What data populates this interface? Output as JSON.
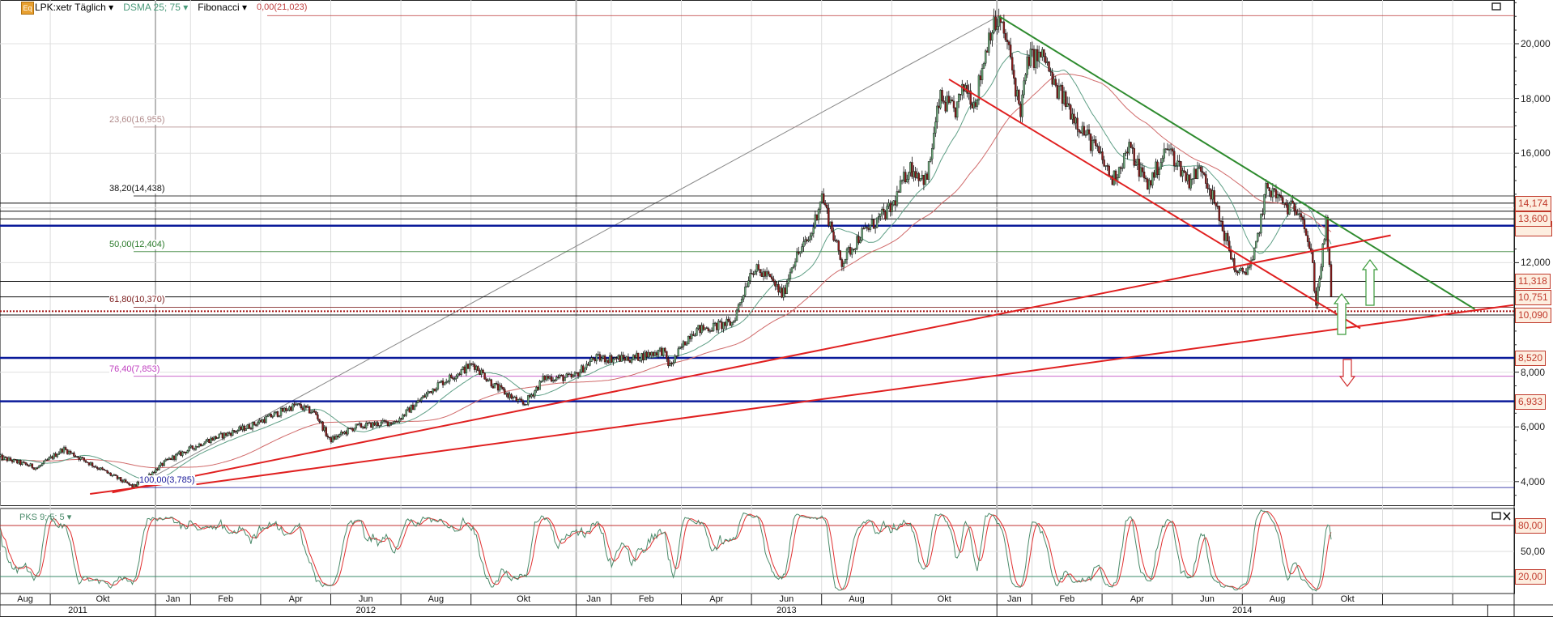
{
  "header": {
    "symbol_icon": "Eq",
    "symbol": "LPK:xetr Täglich",
    "sma_label": "DSMA 25; 75",
    "fib_label": "Fibonacci",
    "oscillator_label": "PKS 9; 5; 5"
  },
  "colors": {
    "up_candle": "#6aa878",
    "down_candle": "#8b1a1a",
    "sma_fast": "#5f9f86",
    "sma_slow": "#d06a6a",
    "trend_red": "#e02020",
    "trend_green": "#2e8b2e",
    "support_blue": "#0a1a9a",
    "stoch_k": "#4a8a6a",
    "stoch_d": "#e03030"
  },
  "chart_data": {
    "type": "candlestick",
    "title": "",
    "y_axis": {
      "range": [
        3500,
        21500
      ],
      "ticks": [
        "20,000",
        "18,000",
        "16,000",
        "12,000",
        "8,000",
        "6,000",
        "4,000"
      ],
      "tick_values": [
        20000,
        18000,
        16000,
        12000,
        8000,
        6000,
        4000
      ],
      "grid": true,
      "position": "right"
    },
    "x_axis": {
      "range": [
        "2011-08-01",
        "2015-03-25"
      ],
      "months": [
        {
          "label": "Aug",
          "start": "2011-08-01"
        },
        {
          "label": "Okt",
          "start": "2011-10-01"
        },
        {
          "label": "Jan",
          "start": "2012-01-01"
        },
        {
          "label": "Feb",
          "start": "2012-02-01"
        },
        {
          "label": "Apr",
          "start": "2012-04-01"
        },
        {
          "label": "Jun",
          "start": "2012-06-01"
        },
        {
          "label": "Aug",
          "start": "2012-08-01"
        },
        {
          "label": "Okt",
          "start": "2012-10-01"
        },
        {
          "label": "Jan",
          "start": "2013-01-01"
        },
        {
          "label": "Feb",
          "start": "2013-02-01"
        },
        {
          "label": "Apr",
          "start": "2013-04-01"
        },
        {
          "label": "Jun",
          "start": "2013-06-01"
        },
        {
          "label": "Aug",
          "start": "2013-08-01"
        },
        {
          "label": "Okt",
          "start": "2013-10-01"
        },
        {
          "label": "Jan",
          "start": "2014-01-01"
        },
        {
          "label": "Feb",
          "start": "2014-02-01"
        },
        {
          "label": "Apr",
          "start": "2014-04-01"
        },
        {
          "label": "Jun",
          "start": "2014-06-01"
        },
        {
          "label": "Aug",
          "start": "2014-08-01"
        },
        {
          "label": "Okt",
          "start": "2014-10-01"
        },
        {
          "label": "",
          "start": "2014-12-01"
        },
        {
          "label": "",
          "start": "2015-02-01"
        }
      ],
      "years": [
        {
          "label": "2011",
          "start": "2011-08-01"
        },
        {
          "label": "2012",
          "start": "2012-01-01"
        },
        {
          "label": "2013",
          "start": "2013-01-01"
        },
        {
          "label": "2014",
          "start": "2014-01-01"
        }
      ],
      "years_end": "2015-03-01"
    },
    "price_path": [
      [
        "2011-08-17",
        4900
      ],
      [
        "2011-09-20",
        4500
      ],
      [
        "2011-10-12",
        5200
      ],
      [
        "2011-11-12",
        4500
      ],
      [
        "2011-12-12",
        3800
      ],
      [
        "2012-01-12",
        4800
      ],
      [
        "2012-02-15",
        5500
      ],
      [
        "2012-03-20",
        6000
      ],
      [
        "2012-05-01",
        6800
      ],
      [
        "2012-05-18",
        6500
      ],
      [
        "2012-05-30",
        5500
      ],
      [
        "2012-06-22",
        6000
      ],
      [
        "2012-07-27",
        6200
      ],
      [
        "2012-09-01",
        7500
      ],
      [
        "2012-10-03",
        8300
      ],
      [
        "2012-10-21",
        7500
      ],
      [
        "2012-11-16",
        6800
      ],
      [
        "2012-12-04",
        7800
      ],
      [
        "2012-12-28",
        7800
      ],
      [
        "2013-01-16",
        8500
      ],
      [
        "2013-02-19",
        8500
      ],
      [
        "2013-03-15",
        8800
      ],
      [
        "2013-03-21",
        8200
      ],
      [
        "2013-04-10",
        9500
      ],
      [
        "2013-05-15",
        9800
      ],
      [
        "2013-06-01",
        11800
      ],
      [
        "2013-06-15",
        11500
      ],
      [
        "2013-06-28",
        10800
      ],
      [
        "2013-07-06",
        12000
      ],
      [
        "2013-07-22",
        13000
      ],
      [
        "2013-08-01",
        14500
      ],
      [
        "2013-08-18",
        12000
      ],
      [
        "2013-09-04",
        13000
      ],
      [
        "2013-10-01",
        14000
      ],
      [
        "2013-10-16",
        15500
      ],
      [
        "2013-11-01",
        15000
      ],
      [
        "2013-11-12",
        18000
      ],
      [
        "2013-11-25",
        17500
      ],
      [
        "2013-12-04",
        18500
      ],
      [
        "2013-12-12",
        17800
      ],
      [
        "2013-12-25",
        20500
      ],
      [
        "2014-01-03",
        20800
      ],
      [
        "2014-01-10",
        20000
      ],
      [
        "2014-01-21",
        17500
      ],
      [
        "2014-01-28",
        19500
      ],
      [
        "2014-02-12",
        19500
      ],
      [
        "2014-02-19",
        18500
      ],
      [
        "2014-02-28",
        18000
      ],
      [
        "2014-03-12",
        17000
      ],
      [
        "2014-03-28",
        16000
      ],
      [
        "2014-04-10",
        15000
      ],
      [
        "2014-04-24",
        16200
      ],
      [
        "2014-05-10",
        14800
      ],
      [
        "2014-05-27",
        16200
      ],
      [
        "2014-06-15",
        15000
      ],
      [
        "2014-06-27",
        15500
      ],
      [
        "2014-07-10",
        13800
      ],
      [
        "2014-07-27",
        11500
      ],
      [
        "2014-08-10",
        12000
      ],
      [
        "2014-08-22",
        14800
      ],
      [
        "2014-09-10",
        14000
      ],
      [
        "2014-09-21",
        14000
      ],
      [
        "2014-10-01",
        12000
      ],
      [
        "2014-10-04",
        10500
      ],
      [
        "2014-10-13",
        13500
      ],
      [
        "2014-10-18",
        10000
      ]
    ],
    "indicators": {
      "sma_periods": [
        25,
        75
      ],
      "stochastic": {
        "k": 9,
        "smooth": 5,
        "d": 5,
        "levels": [
          80,
          20
        ],
        "range": [
          0,
          100
        ],
        "ticks": [
          "80,00",
          "50,00",
          "20,00"
        ]
      }
    },
    "fibonacci": [
      {
        "label": "0,00(21,023)",
        "value": 21023,
        "color": "#c04040"
      },
      {
        "label": "23,60(16,955)",
        "value": 16955,
        "color": "#b08a8a"
      },
      {
        "label": "38,20(14,438)",
        "value": 14438,
        "color": "#111111"
      },
      {
        "label": "50,00(12,404)",
        "value": 12404,
        "color": "#2a7a2a"
      },
      {
        "label": "61,80(10,370)",
        "value": 10370,
        "color": "#7a1a1a"
      },
      {
        "label": "76,40(7,853)",
        "value": 7853,
        "color": "#c040c0"
      },
      {
        "label": "100,00(3,785)",
        "value": 3785,
        "color": "#1a1a9a"
      }
    ],
    "fib_anchor": [
      [
        "2011-12-12",
        3785
      ],
      [
        "2014-01-03",
        21023
      ]
    ],
    "horizontal_levels": [
      {
        "label": "14,174",
        "value": 14174,
        "style": "black"
      },
      {
        "label": "",
        "value": 13880,
        "style": "black"
      },
      {
        "label": "13,600",
        "value": 13600,
        "style": "black"
      },
      {
        "label": "",
        "value": 13350,
        "style": "blue"
      },
      {
        "label": "11,318",
        "value": 11318,
        "style": "black"
      },
      {
        "label": "10,751",
        "value": 10751,
        "style": "black"
      },
      {
        "label": "",
        "value": 10225,
        "style": "red-dotted"
      },
      {
        "label": "10,090",
        "value": 10090,
        "style": "black"
      },
      {
        "label": "8,520",
        "value": 8520,
        "style": "blue"
      },
      {
        "label": "6,933",
        "value": 6933,
        "style": "blue"
      }
    ],
    "trend_lines": [
      {
        "color": "green",
        "from": [
          "2014-01-03",
          21000
        ],
        "to": [
          "2015-02-20",
          10300
        ]
      },
      {
        "color": "red",
        "from": [
          "2013-11-20",
          18700
        ],
        "to": [
          "2014-11-12",
          9600
        ]
      },
      {
        "color": "red",
        "from": [
          "2011-11-24",
          3600
        ],
        "to": [
          "2014-12-08",
          13000
        ]
      },
      {
        "color": "red",
        "from": [
          "2012-02-06",
          3900
        ],
        "to": [
          "2015-03-23",
          10450
        ]
      },
      {
        "color": "red",
        "from": [
          "2011-11-05",
          3550
        ],
        "to": [
          "2012-01-15",
          3950
        ]
      }
    ]
  }
}
